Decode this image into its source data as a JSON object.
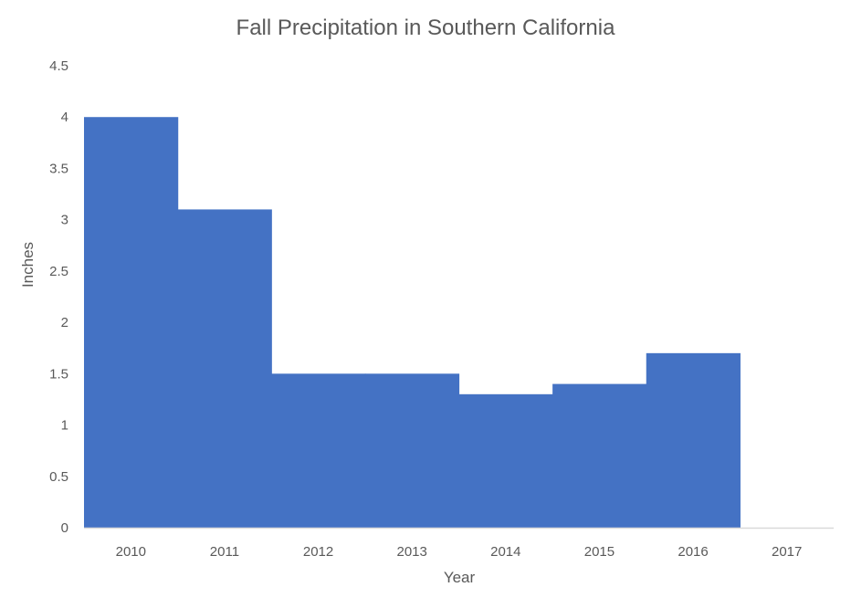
{
  "chart_data": {
    "type": "area",
    "title": "Fall Precipitation in Southern California",
    "xlabel": "Year",
    "ylabel": "Inches",
    "categories": [
      "2010",
      "2011",
      "2012",
      "2013",
      "2014",
      "2015",
      "2016",
      "2017"
    ],
    "values": [
      4.0,
      3.1,
      1.5,
      1.5,
      1.3,
      1.4,
      1.7,
      null
    ],
    "ylim": [
      0,
      4.5
    ],
    "yticks": [
      "0",
      "0.5",
      "1",
      "1.5",
      "2",
      "2.5",
      "3",
      "3.5",
      "4",
      "4.5"
    ],
    "grid": false,
    "legend": "none",
    "colors": {
      "fill": "#4472C4",
      "axis": "#d9d9d9",
      "text": "#595959"
    }
  }
}
